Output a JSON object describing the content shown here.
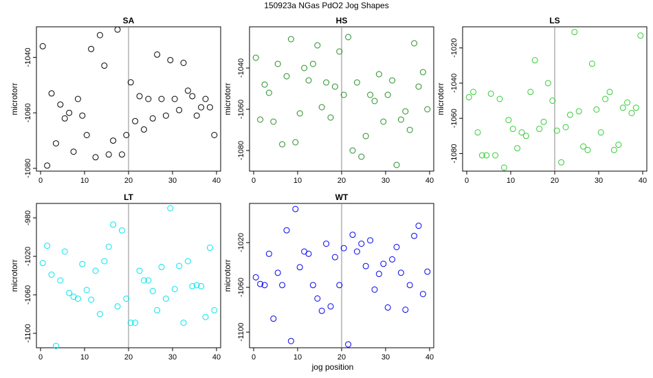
{
  "figure": {
    "title": "150923a   NGas PdO2 Jog Shapes",
    "xlabel": "jog position",
    "ylabel": "microtorr"
  },
  "chart_data": [
    {
      "type": "scatter",
      "title": "SA",
      "color": "#000000",
      "xlim": [
        0,
        40
      ],
      "ylim": [
        -1081,
        -1029
      ],
      "xticks": [
        "0",
        "10",
        "20",
        "30",
        "40"
      ],
      "yticks": [
        "-1080",
        "-1060",
        "-1040"
      ],
      "vline": 20,
      "points": [
        [
          0.5,
          -1036
        ],
        [
          1.5,
          -1079
        ],
        [
          2.5,
          -1053
        ],
        [
          3.5,
          -1071
        ],
        [
          4.5,
          -1057
        ],
        [
          5.5,
          -1062
        ],
        [
          6.5,
          -1060
        ],
        [
          7.5,
          -1074
        ],
        [
          8.5,
          -1055
        ],
        [
          9.5,
          -1061
        ],
        [
          10.5,
          -1068
        ],
        [
          11.5,
          -1037
        ],
        [
          12.5,
          -1076
        ],
        [
          13.5,
          -1032
        ],
        [
          14.5,
          -1043
        ],
        [
          15.5,
          -1075
        ],
        [
          16.5,
          -1070
        ],
        [
          17.5,
          -1030
        ],
        [
          18.5,
          -1075
        ],
        [
          19.5,
          -1068
        ],
        [
          20.5,
          -1049
        ],
        [
          21.5,
          -1063
        ],
        [
          22.5,
          -1054
        ],
        [
          23.5,
          -1066
        ],
        [
          24.5,
          -1055
        ],
        [
          25.5,
          -1062
        ],
        [
          26.5,
          -1039
        ],
        [
          27.5,
          -1055
        ],
        [
          28.5,
          -1061
        ],
        [
          29.5,
          -1041
        ],
        [
          30.5,
          -1055
        ],
        [
          31.5,
          -1059
        ],
        [
          32.5,
          -1042
        ],
        [
          33.5,
          -1052
        ],
        [
          34.5,
          -1054
        ],
        [
          35.5,
          -1061
        ],
        [
          36.5,
          -1058
        ],
        [
          37.5,
          -1055
        ],
        [
          38.5,
          -1058
        ],
        [
          39.5,
          -1068
        ]
      ]
    },
    {
      "type": "scatter",
      "title": "HS",
      "color": "#228B22",
      "xlim": [
        0,
        40
      ],
      "ylim": [
        -1090,
        -1020
      ],
      "xticks": [
        "0",
        "10",
        "20",
        "30",
        "40"
      ],
      "yticks": [
        "-1080",
        "-1060",
        "-1040"
      ],
      "vline": 20,
      "points": [
        [
          0.5,
          -1035
        ],
        [
          1.5,
          -1065
        ],
        [
          2.5,
          -1048
        ],
        [
          3.5,
          -1052
        ],
        [
          4.5,
          -1066
        ],
        [
          5.5,
          -1038
        ],
        [
          6.5,
          -1077
        ],
        [
          7.5,
          -1044
        ],
        [
          8.5,
          -1026
        ],
        [
          9.5,
          -1076
        ],
        [
          10.5,
          -1062
        ],
        [
          11.5,
          -1040
        ],
        [
          12.5,
          -1046
        ],
        [
          13.5,
          -1038
        ],
        [
          14.5,
          -1029
        ],
        [
          15.5,
          -1059
        ],
        [
          16.5,
          -1047
        ],
        [
          17.5,
          -1064
        ],
        [
          18.5,
          -1049
        ],
        [
          19.5,
          -1032
        ],
        [
          20.5,
          -1053
        ],
        [
          21.5,
          -1025
        ],
        [
          22.5,
          -1080
        ],
        [
          23.5,
          -1047
        ],
        [
          24.5,
          -1083
        ],
        [
          25.5,
          -1073
        ],
        [
          26.5,
          -1053
        ],
        [
          27.5,
          -1056
        ],
        [
          28.5,
          -1043
        ],
        [
          29.5,
          -1066
        ],
        [
          30.5,
          -1053
        ],
        [
          31.5,
          -1046
        ],
        [
          32.5,
          -1087
        ],
        [
          33.5,
          -1065
        ],
        [
          34.5,
          -1061
        ],
        [
          35.5,
          -1070
        ],
        [
          36.5,
          -1028
        ],
        [
          37.5,
          -1049
        ],
        [
          38.5,
          -1042
        ],
        [
          39.5,
          -1060
        ]
      ]
    },
    {
      "type": "scatter",
      "title": "LS",
      "color": "#33CC33",
      "xlim": [
        0,
        40
      ],
      "ylim": [
        -1090,
        -1008
      ],
      "xticks": [
        "0",
        "10",
        "20",
        "30",
        "40"
      ],
      "yticks": [
        "-1080",
        "-1060",
        "-1040",
        "-1020"
      ],
      "vline": 20,
      "points": [
        [
          0.5,
          -1048
        ],
        [
          1.5,
          -1045
        ],
        [
          2.5,
          -1068
        ],
        [
          3.5,
          -1081
        ],
        [
          4.5,
          -1081
        ],
        [
          5.5,
          -1046
        ],
        [
          6.5,
          -1081
        ],
        [
          7.5,
          -1049
        ],
        [
          8.5,
          -1088
        ],
        [
          9.5,
          -1061
        ],
        [
          10.5,
          -1066
        ],
        [
          11.5,
          -1077
        ],
        [
          12.5,
          -1068
        ],
        [
          13.5,
          -1070
        ],
        [
          14.5,
          -1045
        ],
        [
          15.5,
          -1027
        ],
        [
          16.5,
          -1066
        ],
        [
          17.5,
          -1062
        ],
        [
          18.5,
          -1040
        ],
        [
          19.5,
          -1050
        ],
        [
          20.5,
          -1067
        ],
        [
          21.5,
          -1085
        ],
        [
          22.5,
          -1065
        ],
        [
          23.5,
          -1058
        ],
        [
          24.5,
          -1011
        ],
        [
          25.5,
          -1056
        ],
        [
          26.5,
          -1076
        ],
        [
          27.5,
          -1078
        ],
        [
          28.5,
          -1029
        ],
        [
          29.5,
          -1055
        ],
        [
          30.5,
          -1068
        ],
        [
          31.5,
          -1049
        ],
        [
          32.5,
          -1045
        ],
        [
          33.5,
          -1078
        ],
        [
          34.5,
          -1075
        ],
        [
          35.5,
          -1054
        ],
        [
          36.5,
          -1051
        ],
        [
          37.5,
          -1057
        ],
        [
          38.5,
          -1054
        ],
        [
          39.5,
          -1013
        ]
      ]
    },
    {
      "type": "scatter",
      "title": "LT",
      "color": "#00E5EE",
      "xlim": [
        0,
        40
      ],
      "ylim": [
        -1115,
        -965
      ],
      "xticks": [
        "0",
        "10",
        "20",
        "30",
        "40"
      ],
      "yticks": [
        "-1100",
        "-1060",
        "-1020",
        "-980"
      ],
      "vline": 20,
      "points": [
        [
          0.5,
          -1027
        ],
        [
          1.5,
          -1009
        ],
        [
          2.5,
          -1039
        ],
        [
          3.5,
          -1113
        ],
        [
          4.5,
          -1045
        ],
        [
          5.5,
          -1015
        ],
        [
          6.5,
          -1058
        ],
        [
          7.5,
          -1062
        ],
        [
          8.5,
          -1064
        ],
        [
          9.5,
          -1028
        ],
        [
          10.5,
          -1055
        ],
        [
          11.5,
          -1065
        ],
        [
          12.5,
          -1035
        ],
        [
          13.5,
          -1080
        ],
        [
          14.5,
          -1025
        ],
        [
          15.5,
          -1010
        ],
        [
          16.5,
          -987
        ],
        [
          17.5,
          -1072
        ],
        [
          18.5,
          -993
        ],
        [
          19.5,
          -1064
        ],
        [
          20.5,
          -1089
        ],
        [
          21.5,
          -1089
        ],
        [
          22.5,
          -1035
        ],
        [
          23.5,
          -1045
        ],
        [
          24.5,
          -1045
        ],
        [
          25.5,
          -1056
        ],
        [
          26.5,
          -1076
        ],
        [
          27.5,
          -1031
        ],
        [
          28.5,
          -1064
        ],
        [
          29.5,
          -970
        ],
        [
          30.5,
          -1054
        ],
        [
          31.5,
          -1030
        ],
        [
          32.5,
          -1089
        ],
        [
          33.5,
          -1025
        ],
        [
          34.5,
          -1051
        ],
        [
          35.5,
          -1050
        ],
        [
          36.5,
          -1051
        ],
        [
          37.5,
          -1083
        ],
        [
          38.5,
          -1011
        ],
        [
          39.5,
          -1076
        ]
      ]
    },
    {
      "type": "scatter",
      "title": "WT",
      "color": "#0000EE",
      "xlim": [
        0,
        40
      ],
      "ylim": [
        -1114,
        -985
      ],
      "xticks": [
        "0",
        "10",
        "20",
        "30",
        "40"
      ],
      "yticks": [
        "-1100",
        "-1060",
        "-1020"
      ],
      "vline": 20,
      "points": [
        [
          0.5,
          -1051
        ],
        [
          1.5,
          -1057
        ],
        [
          2.5,
          -1058
        ],
        [
          3.5,
          -1030
        ],
        [
          4.5,
          -1088
        ],
        [
          5.5,
          -1047
        ],
        [
          6.5,
          -1058
        ],
        [
          7.5,
          -1009
        ],
        [
          8.5,
          -1108
        ],
        [
          9.5,
          -990
        ],
        [
          10.5,
          -1042
        ],
        [
          11.5,
          -1028
        ],
        [
          12.5,
          -1030
        ],
        [
          13.5,
          -1058
        ],
        [
          14.5,
          -1070
        ],
        [
          15.5,
          -1081
        ],
        [
          16.5,
          -1021
        ],
        [
          17.5,
          -1077
        ],
        [
          18.5,
          -1033
        ],
        [
          19.5,
          -1058
        ],
        [
          20.5,
          -1025
        ],
        [
          21.5,
          -1111
        ],
        [
          22.5,
          -1013
        ],
        [
          23.5,
          -1028
        ],
        [
          24.5,
          -1021
        ],
        [
          25.5,
          -1041
        ],
        [
          26.5,
          -1018
        ],
        [
          27.5,
          -1062
        ],
        [
          28.5,
          -1048
        ],
        [
          29.5,
          -1039
        ],
        [
          30.5,
          -1078
        ],
        [
          31.5,
          -1035
        ],
        [
          32.5,
          -1024
        ],
        [
          33.5,
          -1047
        ],
        [
          34.5,
          -1080
        ],
        [
          35.5,
          -1058
        ],
        [
          36.5,
          -1014
        ],
        [
          37.5,
          -1005
        ],
        [
          38.5,
          -1066
        ],
        [
          39.5,
          -1046
        ]
      ]
    }
  ]
}
